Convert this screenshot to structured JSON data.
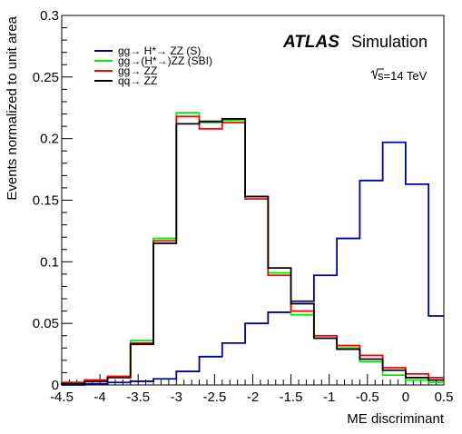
{
  "chart_data": {
    "type": "line",
    "xlabel": "ME discriminant",
    "ylabel": "Events normalized to unit area",
    "xlim": [
      -4.5,
      0.5
    ],
    "ylim": [
      0,
      0.3
    ],
    "x_ticks": [
      "-4.5",
      "-4",
      "-3.5",
      "-3",
      "-2.5",
      "-2",
      "-1.5",
      "-1",
      "-0.5",
      "0",
      "0.5"
    ],
    "y_ticks": [
      "0",
      "0.05",
      "0.1",
      "0.15",
      "0.2",
      "0.25",
      "0.3"
    ],
    "grid": false,
    "legend_position": "top-left",
    "bin_edges": [
      -4.5,
      -4.2,
      -3.9,
      -3.6,
      -3.3,
      -3.0,
      -2.7,
      -2.4,
      -2.1,
      -1.8,
      -1.5,
      -1.2,
      -0.9,
      -0.6,
      -0.3,
      0.0,
      0.3,
      0.5
    ],
    "series": [
      {
        "name": "gg→ H*→ ZZ (S)",
        "color": "#000099",
        "values": [
          0.0,
          0.001,
          0.002,
          0.003,
          0.005,
          0.011,
          0.023,
          0.034,
          0.05,
          0.059,
          0.068,
          0.089,
          0.119,
          0.166,
          0.197,
          0.163,
          0.056
        ]
      },
      {
        "name": "gg→(H*→)ZZ (SBI)",
        "color": "#00ee00",
        "values": [
          0.002,
          0.004,
          0.007,
          0.036,
          0.119,
          0.221,
          0.213,
          0.215,
          0.153,
          0.091,
          0.057,
          0.038,
          0.03,
          0.019,
          0.008,
          0.004,
          0.002
        ]
      },
      {
        "name": "gg→ ZZ",
        "color": "#ff0000",
        "values": [
          0.002,
          0.004,
          0.007,
          0.034,
          0.117,
          0.218,
          0.208,
          0.213,
          0.151,
          0.089,
          0.06,
          0.04,
          0.032,
          0.024,
          0.014,
          0.009,
          0.006
        ]
      },
      {
        "name": "qq→ ZZ",
        "color": "#000000",
        "values": [
          0.001,
          0.003,
          0.006,
          0.033,
          0.115,
          0.212,
          0.214,
          0.216,
          0.153,
          0.095,
          0.066,
          0.038,
          0.029,
          0.021,
          0.012,
          0.006,
          0.004
        ]
      }
    ],
    "annotations": {
      "atlas": "ATLAS",
      "simulation": "Simulation",
      "energy": "s=14 TeV"
    }
  }
}
